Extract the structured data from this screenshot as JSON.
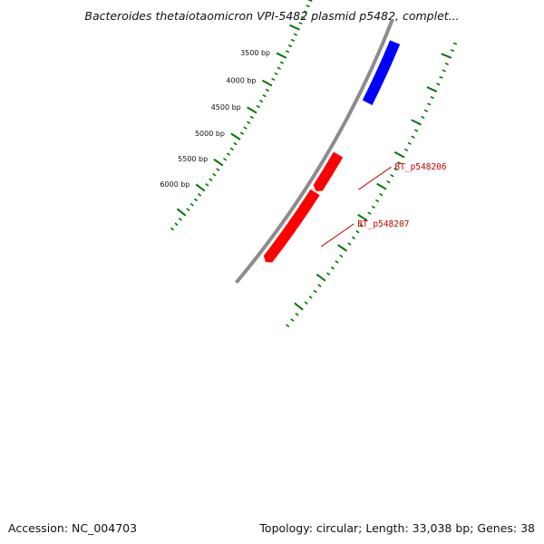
{
  "title": "Bacteroides thetaiotaomicron VPI-5482 plasmid p5482, complet...",
  "accession": "Accession: NC_004703",
  "summary": "Topology: circular; Length: 33,038 bp; Genes: 38",
  "colors": {
    "backbone": "#8c8c8c",
    "forward_gene": "#ff0000",
    "reverse_gene": "#0000ff",
    "ticks": "#007700",
    "label_line": "#cc0000"
  },
  "ruler_labels": [
    "3500 bp",
    "4000 bp",
    "4500 bp",
    "5000 bp",
    "5500 bp",
    "6000 bp"
  ],
  "genes": [
    {
      "label": "",
      "strand": "reverse",
      "start_bp": 2600,
      "end_bp": 3560
    },
    {
      "label": "BT_p548206",
      "strand": "forward",
      "start_bp": 4420,
      "end_bp": 5040
    },
    {
      "label": "BT_p548207",
      "strand": "forward",
      "start_bp": 5060,
      "end_bp": 6300
    }
  ]
}
